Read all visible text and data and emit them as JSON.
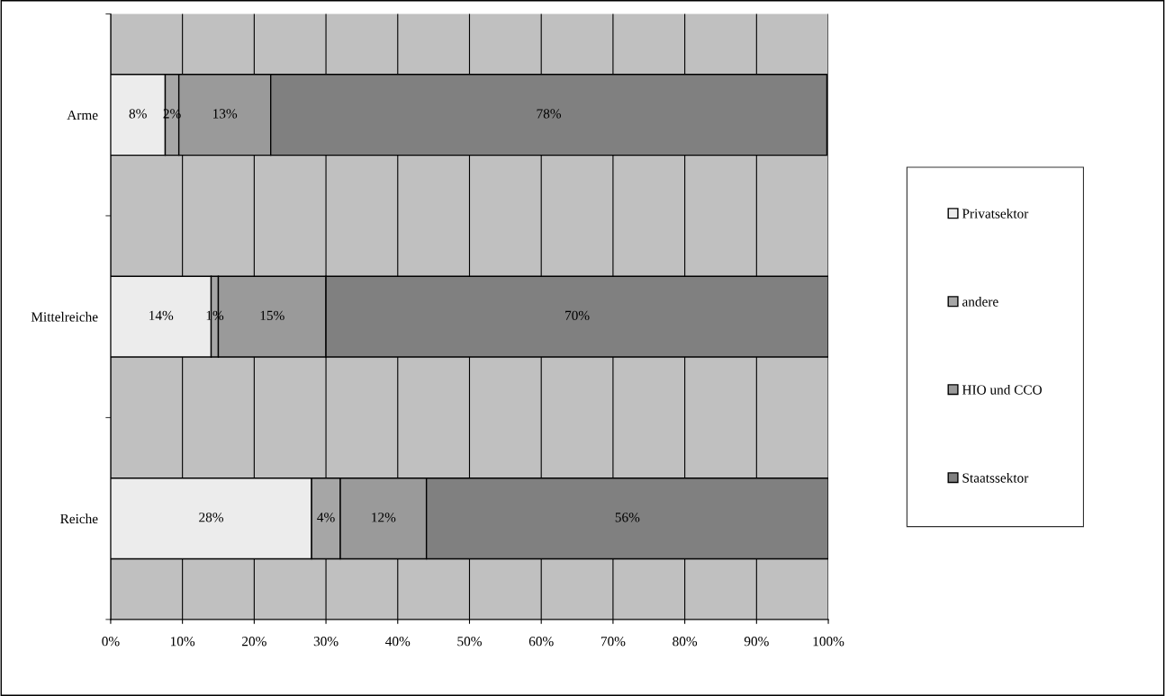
{
  "chart_data": {
    "type": "bar",
    "orientation": "horizontal",
    "stacked": true,
    "categories": [
      "Arme",
      "Mittelreiche",
      "Reiche"
    ],
    "series": [
      {
        "name": "Privatsektor",
        "color": "#ececec",
        "values": [
          7.6,
          14,
          28
        ],
        "value_labels": [
          "8%",
          "14%",
          "28%"
        ]
      },
      {
        "name": "andere",
        "color": "#a6a6a6",
        "values": [
          1.9,
          1,
          4
        ],
        "value_labels": [
          "2%",
          "1%",
          "4%"
        ]
      },
      {
        "name": "HIO und CCO",
        "color": "#9a9a9a",
        "values": [
          12.8,
          15,
          12
        ],
        "value_labels": [
          "13%",
          "15%",
          "12%"
        ]
      },
      {
        "name": "Staatssektor",
        "color": "#808080",
        "values": [
          77.5,
          70,
          56
        ],
        "value_labels": [
          "78%",
          "70%",
          "56%"
        ]
      }
    ],
    "xlim": [
      0,
      100
    ],
    "xticks": [
      {
        "value": 0,
        "label": "0%"
      },
      {
        "value": 10,
        "label": "10%"
      },
      {
        "value": 20,
        "label": "20%"
      },
      {
        "value": 30,
        "label": "30%"
      },
      {
        "value": 40,
        "label": "40%"
      },
      {
        "value": 50,
        "label": "50%"
      },
      {
        "value": 60,
        "label": "60%"
      },
      {
        "value": 70,
        "label": "70%"
      },
      {
        "value": 80,
        "label": "80%"
      },
      {
        "value": 90,
        "label": "90%"
      },
      {
        "value": 100,
        "label": "100%"
      }
    ],
    "grid": "x",
    "legend": "right"
  }
}
